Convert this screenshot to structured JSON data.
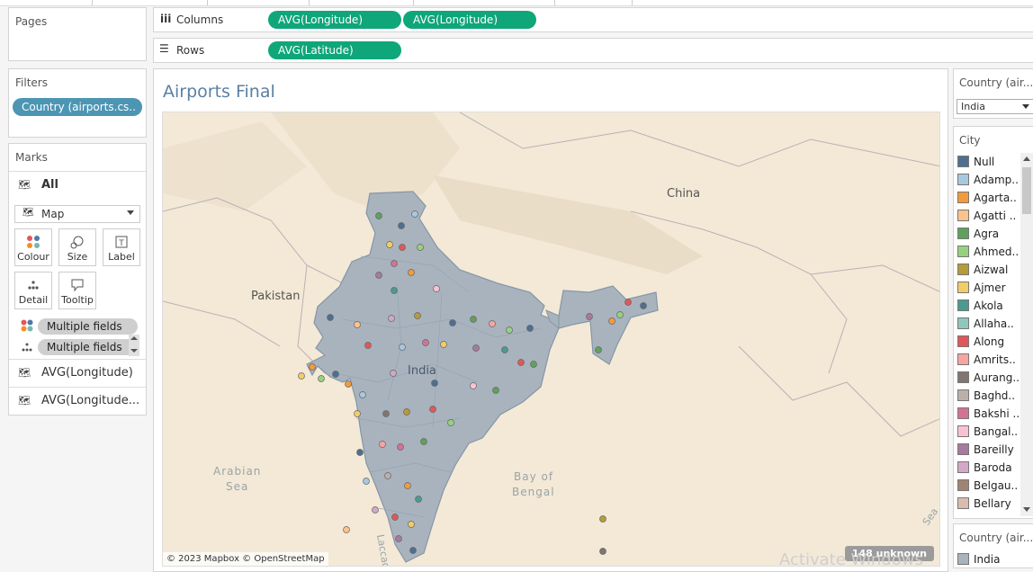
{
  "shelves": {
    "columns_label": "Columns",
    "rows_label": "Rows",
    "columns_pills": [
      "AVG(Longitude)",
      "AVG(Longitude)"
    ],
    "rows_pills": [
      "AVG(Latitude)"
    ]
  },
  "pages": {
    "title": "Pages"
  },
  "filters": {
    "title": "Filters",
    "pill": "Country (airports.cs.."
  },
  "marks": {
    "title": "Marks",
    "all_label": "All",
    "mark_type": "Map",
    "buttons": [
      "Colour",
      "Size",
      "Label",
      "Detail",
      "Tooltip"
    ],
    "fields": [
      "Multiple fields",
      "Multiple fields"
    ],
    "rows": [
      "AVG(Longitude)",
      "AVG(Longitude..."
    ]
  },
  "sheet": {
    "title": "Airports Final",
    "attribution": "© 2023 Mapbox © OpenStreetMap",
    "unknown_badge": "148 unknown",
    "watermark": "Activate Windows"
  },
  "map_labels": {
    "china": "China",
    "pakistan": "Pakistan",
    "india": "India",
    "arabian_sea_1": "Arabian",
    "arabian_sea_2": "Sea",
    "bay_1": "Bay of",
    "bay_2": "Bengal",
    "laccadive": "Laccad",
    "sea_partial": "Sea"
  },
  "country_filter": {
    "title": "Country (air...",
    "value": "India"
  },
  "city_legend": {
    "title": "City",
    "items": [
      {
        "label": "Null",
        "color": "#4e6f8f"
      },
      {
        "label": "Adamp..",
        "color": "#a8c8e0"
      },
      {
        "label": "Agarta..",
        "color": "#f39a3c"
      },
      {
        "label": "Agatti ..",
        "color": "#fcc38a"
      },
      {
        "label": "Agra",
        "color": "#5fa15b"
      },
      {
        "label": "Ahmed..",
        "color": "#96d17f"
      },
      {
        "label": "Aizwal",
        "color": "#b59b3a"
      },
      {
        "label": "Ajmer",
        "color": "#f1cd66"
      },
      {
        "label": "Akola",
        "color": "#4a9a8f"
      },
      {
        "label": "Allaha..",
        "color": "#8fc7bb"
      },
      {
        "label": "Along",
        "color": "#e15759"
      },
      {
        "label": "Amrits..",
        "color": "#f8a4a1"
      },
      {
        "label": "Aurang..",
        "color": "#7f7671"
      },
      {
        "label": "Baghd..",
        "color": "#bbb0a9"
      },
      {
        "label": "Bakshi ..",
        "color": "#d37295"
      },
      {
        "label": "Bangal..",
        "color": "#f9c2d2"
      },
      {
        "label": "Bareilly",
        "color": "#a77a9f"
      },
      {
        "label": "Baroda",
        "color": "#d3a7c7"
      },
      {
        "label": "Belgau..",
        "color": "#a08472"
      },
      {
        "label": "Bellary",
        "color": "#d9bcae"
      }
    ]
  },
  "country_legend": {
    "title": "Country (air...",
    "item": "India",
    "color": "#a9b3bd"
  }
}
